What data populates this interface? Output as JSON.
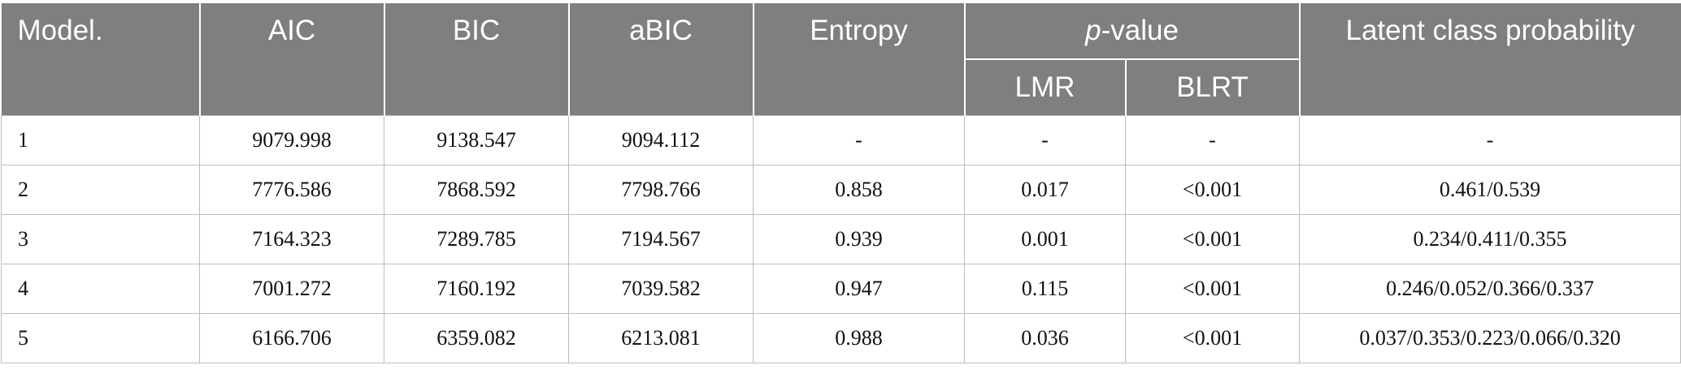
{
  "table": {
    "headers": {
      "model": "Model.",
      "aic": "AIC",
      "bic": "BIC",
      "abic": "aBIC",
      "entropy": "Entropy",
      "pvalue_italic": "p",
      "pvalue_rest": "-value",
      "lmr": "LMR",
      "blrt": "BLRT",
      "lcp": "Latent class probability"
    },
    "rows": [
      {
        "model": "1",
        "aic": "9079.998",
        "bic": "9138.547",
        "abic": "9094.112",
        "entropy": "-",
        "lmr": "-",
        "blrt": "-",
        "lcp": "-"
      },
      {
        "model": "2",
        "aic": "7776.586",
        "bic": "7868.592",
        "abic": "7798.766",
        "entropy": "0.858",
        "lmr": "0.017",
        "blrt": "<0.001",
        "lcp": "0.461/0.539"
      },
      {
        "model": "3",
        "aic": "7164.323",
        "bic": "7289.785",
        "abic": "7194.567",
        "entropy": "0.939",
        "lmr": "0.001",
        "blrt": "<0.001",
        "lcp": "0.234/0.411/0.355"
      },
      {
        "model": "4",
        "aic": "7001.272",
        "bic": "7160.192",
        "abic": "7039.582",
        "entropy": "0.947",
        "lmr": "0.115",
        "blrt": "<0.001",
        "lcp": "0.246/0.052/0.366/0.337"
      },
      {
        "model": "5",
        "aic": "6166.706",
        "bic": "6359.082",
        "abic": "6213.081",
        "entropy": "0.988",
        "lmr": "0.036",
        "blrt": "<0.001",
        "lcp": "0.037/0.353/0.223/0.066/0.320"
      }
    ]
  },
  "colors": {
    "header_background": "#7f7f7f",
    "header_text": "#ffffff",
    "grid_lines": "#bdbdbd"
  }
}
